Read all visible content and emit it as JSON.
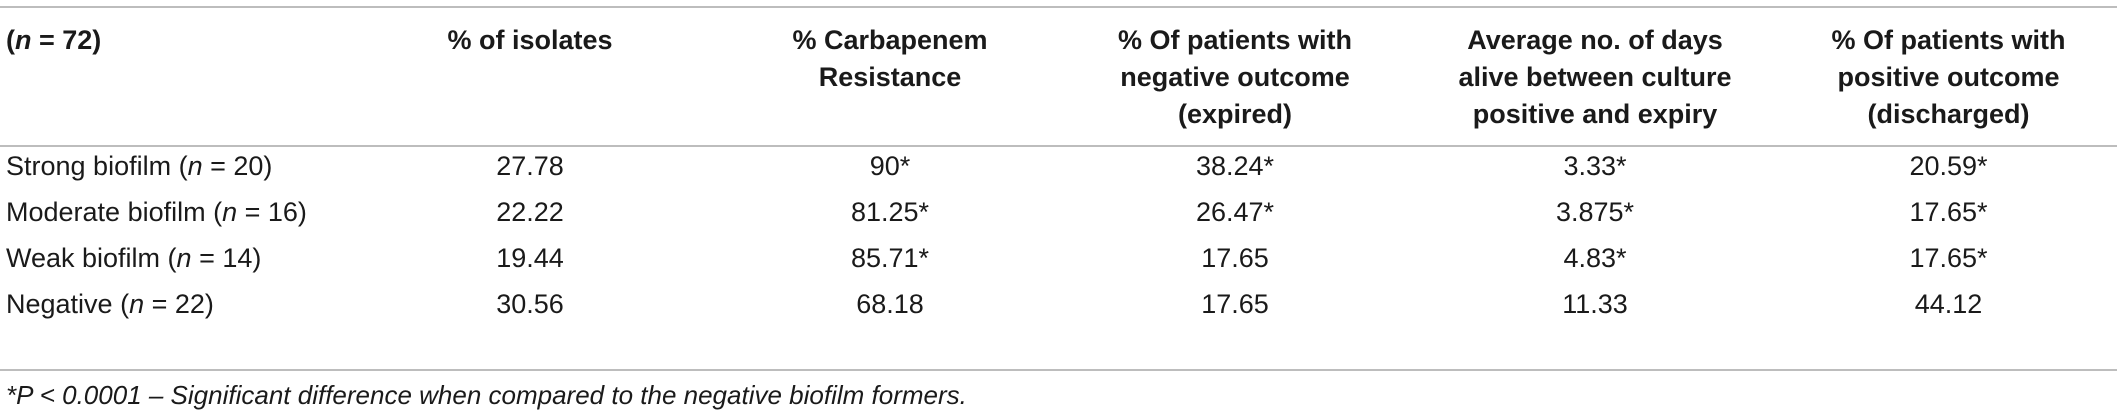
{
  "header": {
    "col0_prefix": "(",
    "col0_n": "n",
    "col0_suffix": " = 72)",
    "col1": "% of isolates",
    "col2_line1": "% Carbapenem",
    "col2_line2": "Resistance",
    "col3_line1": "% Of patients with",
    "col3_line2": "negative outcome",
    "col3_line3": "(expired)",
    "col4_line1": "Average no. of days",
    "col4_line2": "alive between culture",
    "col4_line3": "positive and expiry",
    "col5_line1": "% Of patients with",
    "col5_line2": "positive outcome",
    "col5_line3": "(discharged)"
  },
  "rows": [
    {
      "label": "Strong biofilm (",
      "n": "n",
      "label_suffix": " = 20)",
      "isolates": "27.78",
      "carbapenem": "90*",
      "negative_outcome": "38.24*",
      "avg_days": "3.33*",
      "positive_outcome": "20.59*"
    },
    {
      "label": "Moderate biofilm (",
      "n": "n",
      "label_suffix": " = 16)",
      "isolates": "22.22",
      "carbapenem": "81.25*",
      "negative_outcome": "26.47*",
      "avg_days": "3.875*",
      "positive_outcome": "17.65*"
    },
    {
      "label": "Weak biofilm (",
      "n": "n",
      "label_suffix": " = 14)",
      "isolates": "19.44",
      "carbapenem": "85.71*",
      "negative_outcome": "17.65",
      "avg_days": "4.83*",
      "positive_outcome": "17.65*"
    },
    {
      "label": "Negative (",
      "n": "n",
      "label_suffix": " = 22)",
      "isolates": "30.56",
      "carbapenem": "68.18",
      "negative_outcome": "17.65",
      "avg_days": "11.33",
      "positive_outcome": "44.12"
    }
  ],
  "footnote": "*P < 0.0001 – Significant difference when compared to the negative biofilm formers."
}
